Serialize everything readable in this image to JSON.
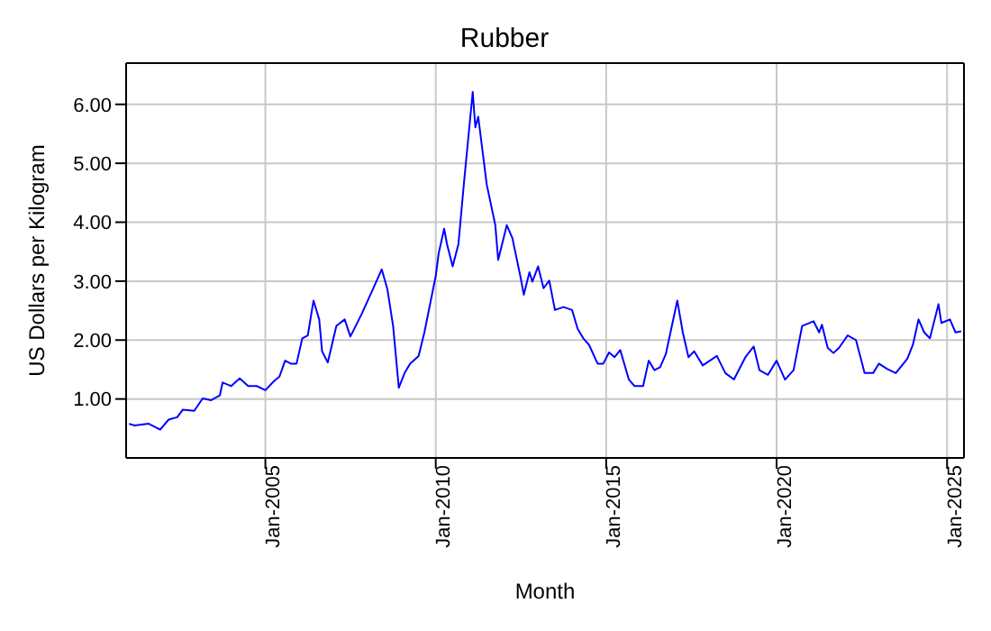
{
  "chart_data": {
    "type": "line",
    "title": "Rubber",
    "xlabel": "Month",
    "ylabel": "US Dollars per Kilogram",
    "x": [
      "2001-01",
      "2001-03",
      "2001-08",
      "2001-12",
      "2002-03",
      "2002-06",
      "2002-08",
      "2002-12",
      "2003-03",
      "2003-06",
      "2003-09",
      "2003-10",
      "2004-01",
      "2004-04",
      "2004-07",
      "2004-10",
      "2005-01",
      "2005-04",
      "2005-06",
      "2005-08",
      "2005-10",
      "2005-12",
      "2006-02",
      "2006-04",
      "2006-06",
      "2006-08",
      "2006-09",
      "2006-11",
      "2007-02",
      "2007-05",
      "2007-07",
      "2007-11",
      "2008-02",
      "2008-06",
      "2008-08",
      "2008-10",
      "2008-12",
      "2009-02",
      "2009-04",
      "2009-07",
      "2009-09",
      "2010-01",
      "2010-02",
      "2010-04",
      "2010-05",
      "2010-07",
      "2010-09",
      "2010-11",
      "2011-02",
      "2011-03",
      "2011-04",
      "2011-06",
      "2011-07",
      "2011-10",
      "2011-11",
      "2012-02",
      "2012-04",
      "2012-07",
      "2012-08",
      "2012-10",
      "2012-11",
      "2013-01",
      "2013-03",
      "2013-05",
      "2013-07",
      "2013-10",
      "2014-01",
      "2014-03",
      "2014-05",
      "2014-07",
      "2014-10",
      "2014-12",
      "2015-02",
      "2015-04",
      "2015-06",
      "2015-09",
      "2015-11",
      "2016-02",
      "2016-04",
      "2016-06",
      "2016-08",
      "2016-10",
      "2017-02",
      "2017-04",
      "2017-06",
      "2017-08",
      "2017-11",
      "2018-04",
      "2018-07",
      "2018-10",
      "2019-02",
      "2019-05",
      "2019-07",
      "2019-10",
      "2020-01",
      "2020-04",
      "2020-07",
      "2020-10",
      "2021-02",
      "2021-04",
      "2021-05",
      "2021-07",
      "2021-09",
      "2021-11",
      "2022-02",
      "2022-05",
      "2022-08",
      "2022-11",
      "2023-01",
      "2023-04",
      "2023-07",
      "2023-11",
      "2024-01",
      "2024-03",
      "2024-05",
      "2024-07",
      "2024-10",
      "2024-11",
      "2025-02",
      "2025-04",
      "2025-06"
    ],
    "series": [
      {
        "color": "#0000ff",
        "values": [
          0.58,
          0.55,
          0.58,
          0.48,
          0.65,
          0.69,
          0.82,
          0.8,
          1.01,
          0.98,
          1.06,
          1.28,
          1.22,
          1.35,
          1.22,
          1.22,
          1.15,
          1.3,
          1.38,
          1.65,
          1.6,
          1.6,
          2.03,
          2.08,
          2.67,
          2.35,
          1.81,
          1.62,
          2.24,
          2.35,
          2.06,
          2.45,
          2.77,
          3.2,
          2.86,
          2.24,
          1.19,
          1.44,
          1.6,
          1.73,
          2.13,
          3.09,
          3.47,
          3.89,
          3.63,
          3.25,
          3.63,
          4.7,
          6.21,
          5.61,
          5.79,
          5.02,
          4.64,
          3.95,
          3.36,
          3.95,
          3.73,
          3.04,
          2.77,
          3.15,
          2.99,
          3.25,
          2.88,
          3.01,
          2.51,
          2.56,
          2.51,
          2.19,
          2.03,
          1.92,
          1.6,
          1.6,
          1.79,
          1.71,
          1.83,
          1.33,
          1.22,
          1.22,
          1.65,
          1.49,
          1.54,
          1.76,
          2.67,
          2.13,
          1.71,
          1.81,
          1.57,
          1.73,
          1.44,
          1.33,
          1.71,
          1.89,
          1.49,
          1.41,
          1.65,
          1.33,
          1.49,
          2.24,
          2.32,
          2.13,
          2.26,
          1.87,
          1.78,
          1.87,
          2.08,
          2.0,
          1.44,
          1.44,
          1.6,
          1.51,
          1.44,
          1.68,
          1.92,
          2.35,
          2.13,
          2.03,
          2.61,
          2.29,
          2.35,
          2.13,
          2.15
        ]
      }
    ],
    "xlim": [
      "2000-12",
      "2025-07"
    ],
    "xticks": [
      {
        "value": "2005-01",
        "label": "Jan-2005"
      },
      {
        "value": "2010-01",
        "label": "Jan-2010"
      },
      {
        "value": "2015-01",
        "label": "Jan-2015"
      },
      {
        "value": "2020-01",
        "label": "Jan-2020"
      },
      {
        "value": "2025-01",
        "label": "Jan-2025"
      }
    ],
    "ylim": [
      0,
      6.7
    ],
    "yticks": [
      {
        "value": 1,
        "label": "1.00"
      },
      {
        "value": 2,
        "label": "2.00"
      },
      {
        "value": 3,
        "label": "3.00"
      },
      {
        "value": 4,
        "label": "4.00"
      },
      {
        "value": 5,
        "label": "5.00"
      },
      {
        "value": 6,
        "label": "6.00"
      }
    ],
    "grid": true,
    "marker": "none",
    "line_style": "solid"
  }
}
